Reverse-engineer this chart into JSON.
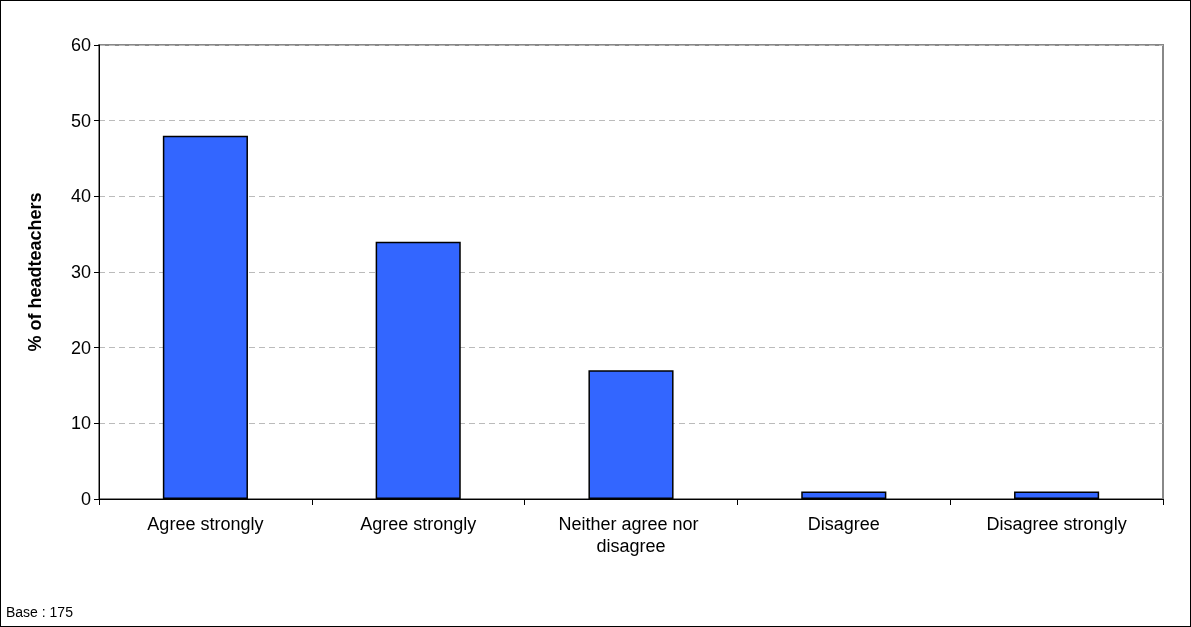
{
  "chart_data": {
    "type": "bar",
    "ylabel": "% of headteachers",
    "categories": [
      "Agree strongly",
      "Agree strongly",
      "Neither agree nor disagree",
      "Disagree",
      "Disagree strongly"
    ],
    "values": [
      48,
      34,
      17,
      1,
      1
    ],
    "color": "#3366ff",
    "ylim": [
      0,
      60
    ],
    "yticks": [
      0,
      10,
      20,
      30,
      40,
      50,
      60
    ],
    "grid": "y",
    "annotations": [
      "Base : 175"
    ]
  }
}
